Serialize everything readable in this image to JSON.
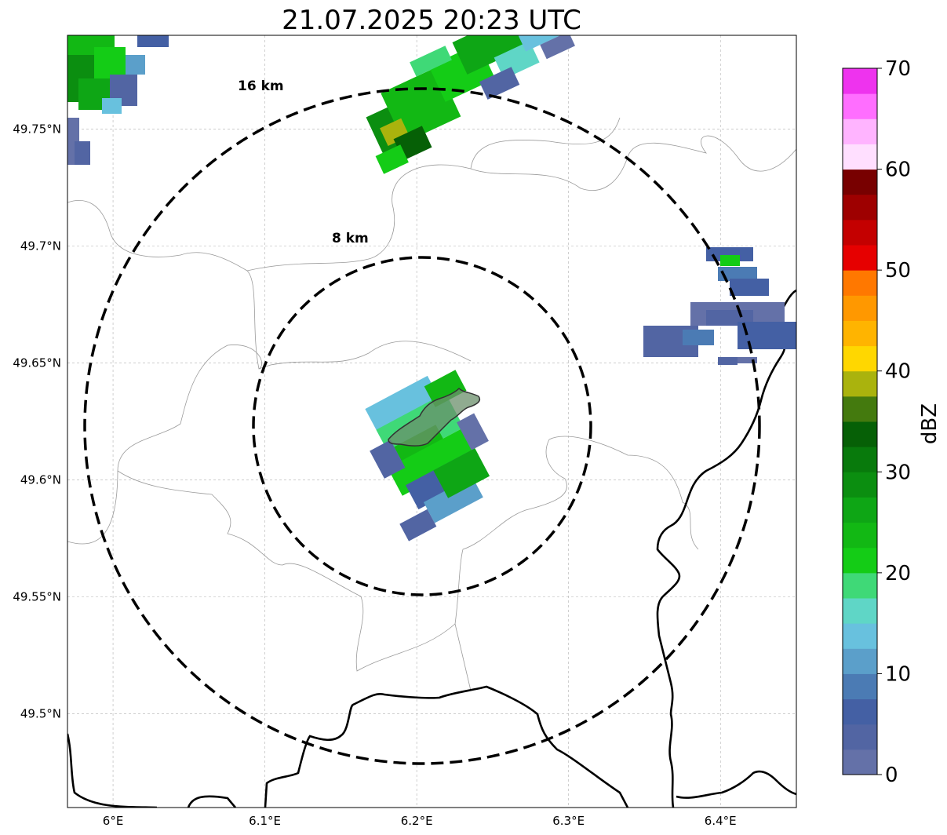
{
  "title": "21.07.2025 20:23 UTC",
  "map": {
    "lon_range": [
      5.97,
      6.45
    ],
    "lat_range": [
      49.46,
      49.79
    ],
    "lon_ticks": [
      {
        "value": 6.0,
        "label": "6°E"
      },
      {
        "value": 6.1,
        "label": "6.1°E"
      },
      {
        "value": 6.2,
        "label": "6.2°E"
      },
      {
        "value": 6.3,
        "label": "6.3°E"
      },
      {
        "value": 6.4,
        "label": "6.4°E"
      }
    ],
    "lat_ticks": [
      {
        "value": 49.5,
        "label": "49.5°N"
      },
      {
        "value": 49.55,
        "label": "49.55°N"
      },
      {
        "value": 49.6,
        "label": "49.6°N"
      },
      {
        "value": 49.65,
        "label": "49.65°N"
      },
      {
        "value": 49.7,
        "label": "49.7°N"
      },
      {
        "value": 49.75,
        "label": "49.75°N"
      }
    ],
    "gridlines": true,
    "range_rings": [
      {
        "label": "8 km"
      },
      {
        "label": "16 km"
      }
    ]
  },
  "colorbar": {
    "label": "dBZ",
    "min": 0,
    "max": 70,
    "ticks": [
      {
        "value": 0,
        "label": "0"
      },
      {
        "value": 10,
        "label": "10"
      },
      {
        "value": 20,
        "label": "20"
      },
      {
        "value": 30,
        "label": "30"
      },
      {
        "value": 40,
        "label": "40"
      },
      {
        "value": 50,
        "label": "50"
      },
      {
        "value": 60,
        "label": "60"
      },
      {
        "value": 70,
        "label": "70"
      }
    ],
    "colors": [
      "#6471a8",
      "#5265a3",
      "#4460a4",
      "#4b7bb4",
      "#5b9fca",
      "#68c1de",
      "#5fd6c6",
      "#3fd977",
      "#14cc16",
      "#12b814",
      "#0ea615",
      "#0b8e10",
      "#087a0c",
      "#066006",
      "#447a0e",
      "#aab30d",
      "#ffd700",
      "#ffb400",
      "#ff9800",
      "#ff7800",
      "#e60000",
      "#c40000",
      "#9e0000",
      "#780000",
      "#ffdfff",
      "#ffb4ff",
      "#ff6eff",
      "#ee33ee"
    ]
  }
}
